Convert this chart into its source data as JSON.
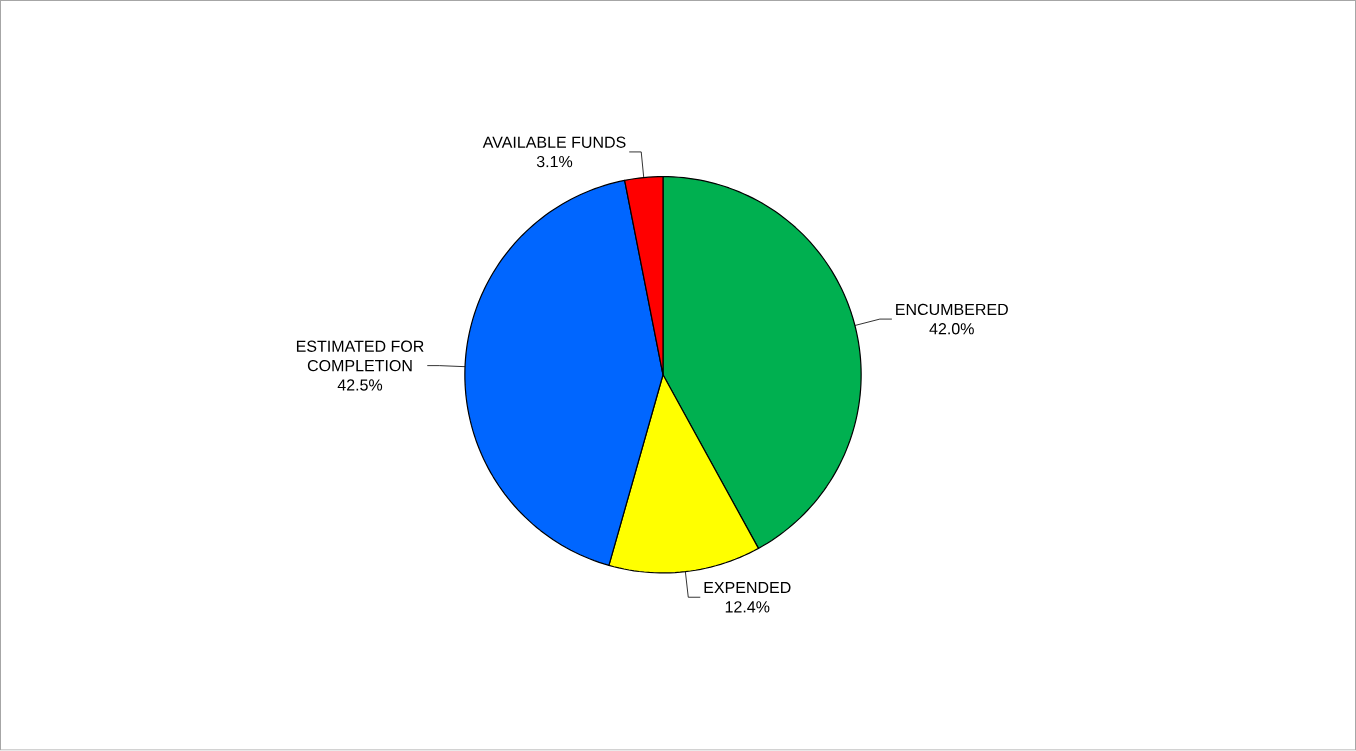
{
  "chart_data": {
    "type": "pie",
    "categories": [
      "ENCUMBERED",
      "EXPENDED",
      "ESTIMATED FOR COMPLETION",
      "AVAILABLE FUNDS"
    ],
    "values": [
      42.0,
      12.4,
      42.5,
      3.1
    ],
    "value_labels": [
      "42.0%",
      "12.4%",
      "42.5%",
      "3.1%"
    ],
    "colors": [
      "#00b050",
      "#ffff00",
      "#0066ff",
      "#ff0000"
    ]
  }
}
